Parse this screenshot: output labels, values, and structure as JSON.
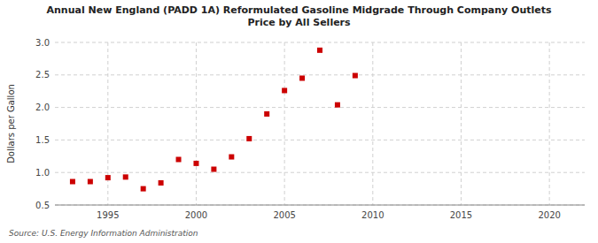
{
  "chart_data": {
    "type": "scatter",
    "title": "Annual New England (PADD 1A) Reformulated Gasoline Midgrade Through Company Outlets\nPrice by All Sellers",
    "ylabel": "Dollars per Gallon",
    "source": "Source: U.S. Energy Information Administration",
    "x": [
      1993,
      1994,
      1995,
      1996,
      1997,
      1998,
      1999,
      2000,
      2001,
      2002,
      2003,
      2004,
      2005,
      2006,
      2007,
      2008,
      2009
    ],
    "values": [
      0.86,
      0.86,
      0.92,
      0.93,
      0.75,
      0.84,
      1.2,
      1.14,
      1.05,
      1.24,
      1.52,
      1.9,
      2.26,
      2.45,
      2.88,
      2.04,
      2.49
    ],
    "color": "#cc0000",
    "marker": "square",
    "grid": true,
    "xlim": [
      1992,
      2022
    ],
    "ylim": [
      0.5,
      3.0
    ],
    "xticks": [
      1995,
      2000,
      2005,
      2010,
      2015,
      2020
    ],
    "yticks": [
      0.5,
      {
        "value": 1,
        "label": "1.0"
      },
      1.5,
      {
        "value": 2,
        "label": "2.0"
      },
      2.5,
      {
        "value": 3,
        "label": "3.0"
      }
    ]
  }
}
